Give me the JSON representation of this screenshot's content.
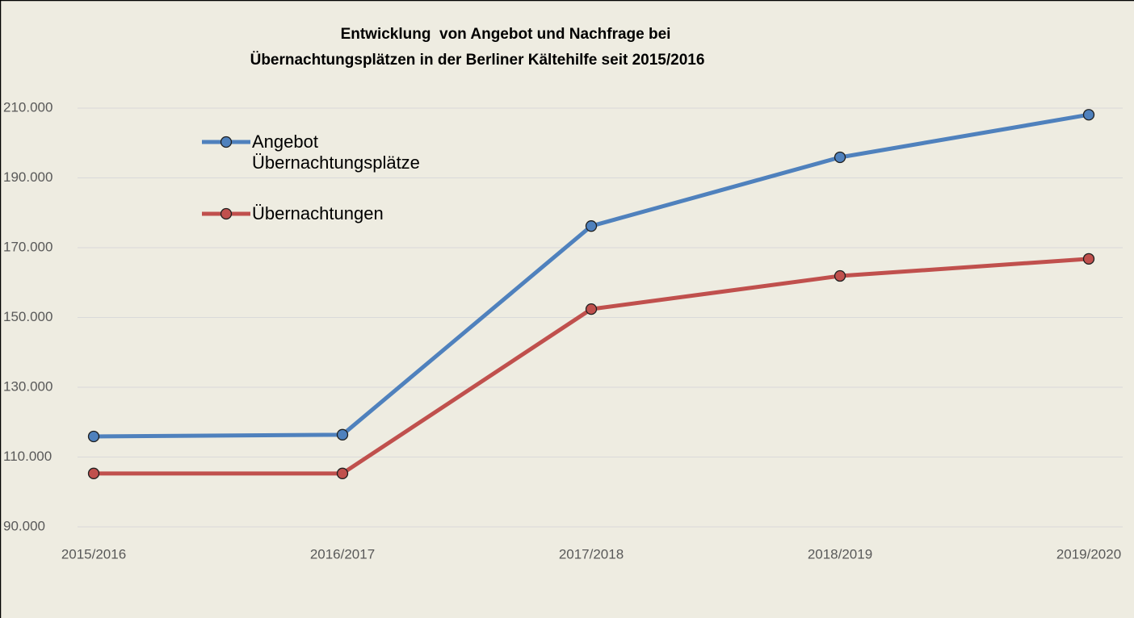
{
  "chart_data": {
    "type": "line",
    "title": [
      "Entwicklung  von Angebot und Nachfrage bei",
      "Übernachtungsplätzen in der Berliner Kältehilfe seit 2015/2016"
    ],
    "categories": [
      "2015/2016",
      "2016/2017",
      "2017/2018",
      "2018/2019",
      "2019/2020"
    ],
    "series": [
      {
        "name": "Angebot Übernachtungsplätze",
        "color": "#4f81bd",
        "values": [
          115900,
          116400,
          176200,
          195900,
          208100
        ]
      },
      {
        "name": "Übernachtungen",
        "color": "#c0504d",
        "values": [
          105300,
          105300,
          152400,
          161900,
          166800
        ]
      }
    ],
    "ylim": [
      90000,
      210000
    ],
    "yticks": [
      {
        "value": 90000,
        "label": "90.000"
      },
      {
        "value": 110000,
        "label": "110.000"
      },
      {
        "value": 130000,
        "label": "130.000"
      },
      {
        "value": 150000,
        "label": "150.000"
      },
      {
        "value": 170000,
        "label": "170.000"
      },
      {
        "value": 190000,
        "label": "190.000"
      },
      {
        "value": 210000,
        "label": "210.000"
      }
    ],
    "grid": true
  }
}
